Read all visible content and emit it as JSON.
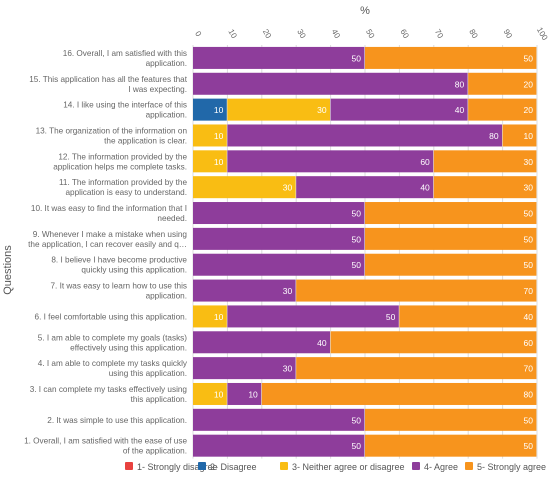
{
  "chart_data": {
    "type": "bar",
    "orientation": "horizontal",
    "stacked": true,
    "xlabel": "%",
    "ylabel": "Questions",
    "xlim": [
      0,
      100
    ],
    "xticks": [
      "0",
      "10",
      "20",
      "30",
      "40",
      "50",
      "60",
      "70",
      "80",
      "90",
      "100"
    ],
    "categories": [
      [
        "16. Overall, I am satisfied with this",
        "application."
      ],
      [
        "15. This application has all the features that",
        "I was expecting."
      ],
      [
        "14. I like using the interface of this",
        "application."
      ],
      [
        "13. The organization of the information on",
        "the application is clear."
      ],
      [
        "12. The information provided by the",
        "application helps me complete tasks."
      ],
      [
        "11. The information provided by the",
        "application is easy to understand."
      ],
      [
        "10. It was easy to find the information that I",
        "needed."
      ],
      [
        "9. Whenever I make a mistake when using",
        "the application, I can recover easily and q…"
      ],
      [
        "8. I believe I have become productive",
        "quickly using this application."
      ],
      [
        "7. It was easy to learn how to use this",
        "application."
      ],
      [
        "6. I feel comfortable using this application."
      ],
      [
        "5. I am able to complete my goals (tasks)",
        "effectively using this application."
      ],
      [
        "4. I am able to complete my tasks quickly",
        "using this application."
      ],
      [
        "3. I can complete my tasks effectively using",
        "this application."
      ],
      [
        "2. It was simple to use this application."
      ],
      [
        "1. Overall, I am satisfied with the ease of use",
        "of the application."
      ]
    ],
    "series": [
      {
        "name": "1- Strongly disagree",
        "color": "#e8423f",
        "values": [
          0,
          0,
          0,
          0,
          0,
          0,
          0,
          0,
          0,
          0,
          0,
          0,
          0,
          0,
          0,
          0
        ]
      },
      {
        "name": "2- Disagree",
        "color": "#2168a9",
        "values": [
          0,
          0,
          10,
          0,
          0,
          0,
          0,
          0,
          0,
          0,
          0,
          0,
          0,
          0,
          0,
          0
        ]
      },
      {
        "name": "3- Neither agree or disagree",
        "color": "#f9bd13",
        "values": [
          0,
          0,
          30,
          10,
          10,
          30,
          0,
          0,
          0,
          0,
          10,
          0,
          0,
          10,
          0,
          0
        ]
      },
      {
        "name": "4- Agree",
        "color": "#8e3d9b",
        "values": [
          50,
          80,
          40,
          80,
          60,
          40,
          50,
          50,
          50,
          30,
          50,
          40,
          30,
          10,
          50,
          50
        ]
      },
      {
        "name": "5- Strongly agree",
        "color": "#f7941d",
        "values": [
          50,
          20,
          20,
          10,
          30,
          30,
          50,
          50,
          50,
          70,
          40,
          60,
          70,
          80,
          50,
          50
        ]
      }
    ],
    "grid": true,
    "legend_position": "bottom"
  }
}
